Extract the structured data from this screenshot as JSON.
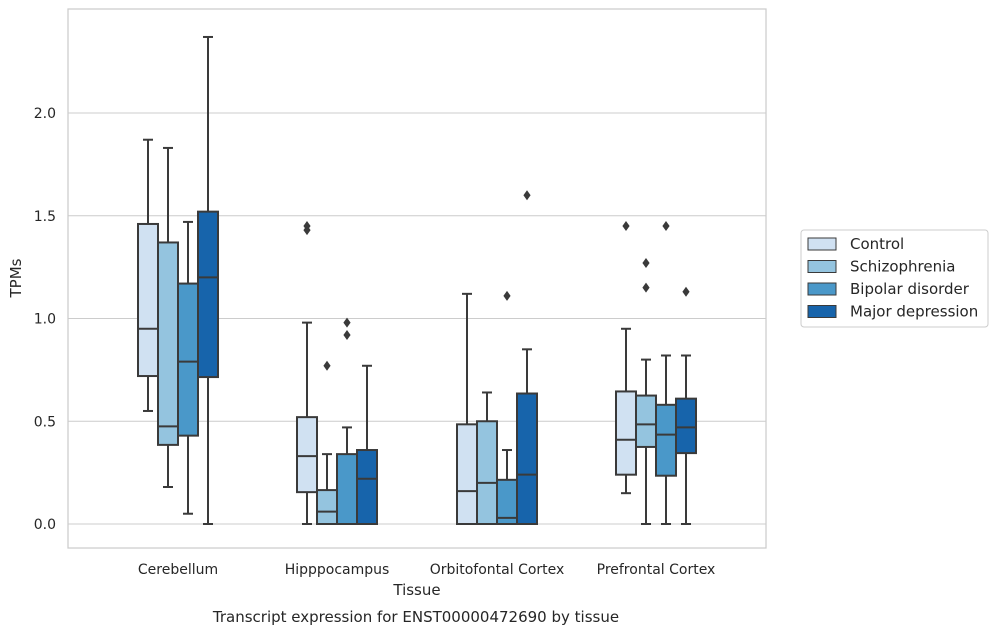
{
  "chart_data": {
    "type": "box",
    "xlabel": "Tissue",
    "ylabel": "TPMs",
    "caption": "Transcript expression for ENST00000472690 by tissue",
    "ylim": [
      -0.12,
      2.52
    ],
    "yticks": [
      0.0,
      0.5,
      1.0,
      1.5,
      2.0
    ],
    "ytick_labels": [
      "0.0",
      "0.5",
      "1.0",
      "1.5",
      "2.0"
    ],
    "grid": "horizontal",
    "legend_position": "right",
    "categories": [
      "Cerebellum",
      "Hipppocampus",
      "Orbitofontal Cortex",
      "Prefrontal Cortex"
    ],
    "series": [
      {
        "name": "Control",
        "color": "#d0e1f2",
        "boxes": [
          {
            "whisker_low": 0.55,
            "q1": 0.72,
            "median": 0.95,
            "q3": 1.46,
            "whisker_high": 1.87,
            "outliers": []
          },
          {
            "whisker_low": 0.0,
            "q1": 0.155,
            "median": 0.33,
            "q3": 0.52,
            "whisker_high": 0.98,
            "outliers": [
              1.43,
              1.45
            ]
          },
          {
            "whisker_low": 0.0,
            "q1": 0.0,
            "median": 0.16,
            "q3": 0.485,
            "whisker_high": 1.12,
            "outliers": []
          },
          {
            "whisker_low": 0.15,
            "q1": 0.24,
            "median": 0.41,
            "q3": 0.645,
            "whisker_high": 0.95,
            "outliers": [
              1.45
            ]
          }
        ]
      },
      {
        "name": "Schizophrenia",
        "color": "#94c4df",
        "boxes": [
          {
            "whisker_low": 0.18,
            "q1": 0.385,
            "median": 0.475,
            "q3": 1.37,
            "whisker_high": 1.83,
            "outliers": []
          },
          {
            "whisker_low": 0.0,
            "q1": 0.0,
            "median": 0.06,
            "q3": 0.165,
            "whisker_high": 0.34,
            "outliers": [
              0.77
            ]
          },
          {
            "whisker_low": 0.0,
            "q1": 0.0,
            "median": 0.2,
            "q3": 0.5,
            "whisker_high": 0.64,
            "outliers": []
          },
          {
            "whisker_low": 0.0,
            "q1": 0.375,
            "median": 0.485,
            "q3": 0.625,
            "whisker_high": 0.8,
            "outliers": [
              1.15,
              1.27
            ]
          }
        ]
      },
      {
        "name": "Bipolar disorder",
        "color": "#4a98c9",
        "boxes": [
          {
            "whisker_low": 0.05,
            "q1": 0.43,
            "median": 0.79,
            "q3": 1.17,
            "whisker_high": 1.47,
            "outliers": []
          },
          {
            "whisker_low": 0.0,
            "q1": 0.0,
            "median": 0.0,
            "q3": 0.34,
            "whisker_high": 0.47,
            "outliers": [
              0.92,
              0.98
            ]
          },
          {
            "whisker_low": 0.0,
            "q1": 0.0,
            "median": 0.03,
            "q3": 0.215,
            "whisker_high": 0.36,
            "outliers": [
              1.11
            ]
          },
          {
            "whisker_low": 0.0,
            "q1": 0.235,
            "median": 0.435,
            "q3": 0.58,
            "whisker_high": 0.82,
            "outliers": [
              1.45
            ]
          }
        ]
      },
      {
        "name": "Major depression",
        "color": "#1764ab",
        "boxes": [
          {
            "whisker_low": 0.0,
            "q1": 0.715,
            "median": 1.2,
            "q3": 1.52,
            "whisker_high": 2.37,
            "outliers": []
          },
          {
            "whisker_low": 0.0,
            "q1": 0.0,
            "median": 0.22,
            "q3": 0.36,
            "whisker_high": 0.77,
            "outliers": []
          },
          {
            "whisker_low": 0.0,
            "q1": 0.0,
            "median": 0.24,
            "q3": 0.635,
            "whisker_high": 0.85,
            "outliers": [
              1.6
            ]
          },
          {
            "whisker_low": 0.0,
            "q1": 0.345,
            "median": 0.47,
            "q3": 0.61,
            "whisker_high": 0.82,
            "outliers": [
              1.13
            ]
          }
        ]
      }
    ]
  }
}
